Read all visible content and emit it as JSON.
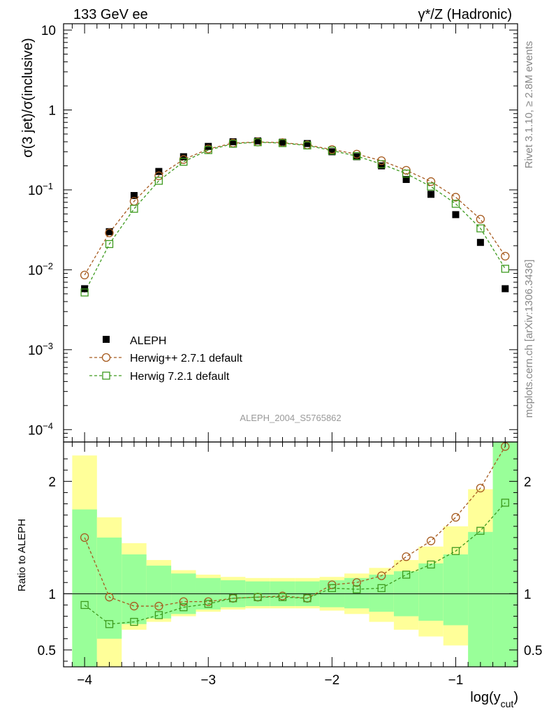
{
  "header": {
    "left": "133 GeV ee",
    "right_prefix": "γ*/Z (Hadronic)"
  },
  "side": {
    "rivet": "Rivet 3.1.10, ≥ 2.8M events",
    "mcplots": "mcplots.cern.ch [arXiv:1306.3436]"
  },
  "watermark": "ALEPH_2004_S5765862",
  "colors": {
    "aleph": "#000000",
    "herwigpp": "#a65a1e",
    "herwig7": "#3d9a1e",
    "band_inner": "#99ff99",
    "band_outer": "#ffff99"
  },
  "chart_data": [
    {
      "type": "scatter",
      "panel": "main",
      "ylabel": "σ(3 jet)/σ(inclusive)",
      "yscale": "log",
      "ylim": [
        7e-05,
        12
      ],
      "xlim": [
        -4.17,
        -0.5
      ],
      "yticks": [
        "10",
        "1",
        "10−1",
        "10−2",
        "10−3",
        "10−4"
      ],
      "legend_position": "lower-left",
      "x": [
        -4.0,
        -3.8,
        -3.6,
        -3.4,
        -3.2,
        -3.0,
        -2.8,
        -2.6,
        -2.4,
        -2.2,
        -2.0,
        -1.8,
        -1.6,
        -1.4,
        -1.2,
        -1.0,
        -0.8,
        -0.6
      ],
      "series": [
        {
          "name": "ALEPH",
          "marker": "filled-square",
          "values": [
            0.0058,
            0.03,
            0.085,
            0.17,
            0.26,
            0.35,
            0.4,
            0.41,
            0.395,
            0.38,
            0.3,
            0.26,
            0.2,
            0.135,
            0.088,
            0.049,
            0.022,
            0.0058
          ]
        },
        {
          "name": "Herwig++ 2.7.1 default",
          "marker": "open-circle",
          "line": "dashed",
          "values": [
            0.0086,
            0.029,
            0.072,
            0.15,
            0.24,
            0.325,
            0.385,
            0.398,
            0.39,
            0.365,
            0.32,
            0.28,
            0.232,
            0.176,
            0.127,
            0.081,
            0.043,
            0.0148
          ]
        },
        {
          "name": "Herwig 7.2.1 default",
          "marker": "open-square",
          "line": "dashed",
          "values": [
            0.0052,
            0.021,
            0.058,
            0.13,
            0.225,
            0.315,
            0.378,
            0.395,
            0.385,
            0.36,
            0.31,
            0.265,
            0.21,
            0.16,
            0.11,
            0.067,
            0.033,
            0.0103
          ]
        }
      ]
    },
    {
      "type": "line",
      "panel": "ratio",
      "ylabel": "Ratio to ALEPH",
      "xlabel_base": "log(y",
      "xlabel_sub": "cut",
      "xlabel_end": ")",
      "ylim": [
        0.35,
        2.35
      ],
      "xlim": [
        -4.17,
        -0.5
      ],
      "xticks": [
        -4,
        -3,
        -2,
        -1
      ],
      "xtick_labels": [
        "−4",
        "−3",
        "−2",
        "−1"
      ],
      "yticks": [
        0.5,
        1,
        2
      ],
      "ytick_labels": [
        "0.5",
        "1",
        "2"
      ],
      "x": [
        -4.0,
        -3.8,
        -3.6,
        -3.4,
        -3.2,
        -3.0,
        -2.8,
        -2.6,
        -2.4,
        -2.2,
        -2.0,
        -1.8,
        -1.6,
        -1.4,
        -1.2,
        -1.0,
        -0.8,
        -0.6
      ],
      "bin_edges": [
        -4.1,
        -3.9,
        -3.7,
        -3.5,
        -3.3,
        -3.1,
        -2.9,
        -2.7,
        -2.5,
        -2.3,
        -2.1,
        -1.9,
        -1.7,
        -1.5,
        -1.3,
        -1.1,
        -0.9,
        -0.7,
        -0.5
      ],
      "band_inner": {
        "lo": [
          0.0,
          0.6,
          0.73,
          0.78,
          0.82,
          0.86,
          0.88,
          0.89,
          0.89,
          0.89,
          0.88,
          0.87,
          0.84,
          0.8,
          0.76,
          0.72,
          0.3,
          0.0
        ],
        "hi": [
          1.75,
          1.5,
          1.35,
          1.25,
          1.18,
          1.14,
          1.12,
          1.11,
          1.11,
          1.11,
          1.12,
          1.14,
          1.17,
          1.2,
          1.27,
          1.35,
          1.55,
          2.35
        ]
      },
      "band_outer": {
        "lo": [
          0.0,
          0.0,
          0.68,
          0.75,
          0.8,
          0.84,
          0.86,
          0.87,
          0.87,
          0.87,
          0.85,
          0.82,
          0.75,
          0.68,
          0.62,
          0.54,
          0.0,
          0.0
        ],
        "hi": [
          2.23,
          1.68,
          1.45,
          1.3,
          1.21,
          1.17,
          1.15,
          1.14,
          1.14,
          1.14,
          1.15,
          1.18,
          1.23,
          1.3,
          1.42,
          1.6,
          1.93,
          2.35
        ]
      },
      "series": [
        {
          "name": "Herwig++ 2.7.1 default",
          "values": [
            1.5,
            0.97,
            0.89,
            0.89,
            0.93,
            0.93,
            0.96,
            0.97,
            0.98,
            0.96,
            1.08,
            1.1,
            1.16,
            1.33,
            1.47,
            1.68,
            1.94,
            2.31
          ]
        },
        {
          "name": "Herwig 7.2.1 default",
          "values": [
            0.9,
            0.73,
            0.75,
            0.81,
            0.88,
            0.91,
            0.96,
            0.97,
            0.97,
            0.96,
            1.05,
            1.04,
            1.05,
            1.17,
            1.26,
            1.38,
            1.56,
            1.81
          ]
        }
      ]
    }
  ]
}
